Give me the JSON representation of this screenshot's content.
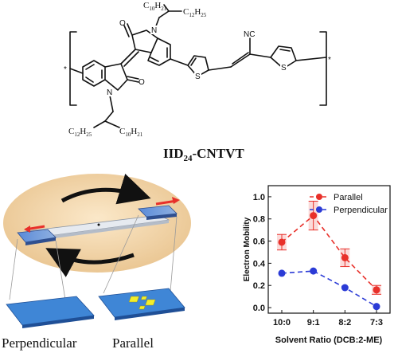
{
  "molecule": {
    "atom_O": "O",
    "atom_N": "N",
    "atom_S": "S",
    "atom_NC": "NC",
    "sub_top_a": "C",
    "sub_top_a_n": "10",
    "sub_top_a_h": "H",
    "sub_top_a_hn": "21",
    "sub_top_b": "C",
    "sub_top_b_n": "12",
    "sub_top_b_h": "H",
    "sub_top_b_hn": "25",
    "sub_bot_a": "C",
    "sub_bot_a_n": "12",
    "sub_bot_a_h": "H",
    "sub_bot_a_hn": "25",
    "sub_bot_b": "C",
    "sub_bot_b_n": "10",
    "sub_bot_b_h": "H",
    "sub_bot_b_hn": "21",
    "name_prefix": "IID",
    "name_sub": "24",
    "name_suffix": "-CNTVT",
    "star": "*"
  },
  "device": {
    "label_perpendicular": "Perpendicular",
    "label_parallel": "Parallel",
    "colors": {
      "disk": "#f2d7ad",
      "chip": "#4b79c8",
      "substrate": "#3f86d6",
      "electrode": "#f3ee2a",
      "arrow_red": "#e8302a"
    }
  },
  "chart_data": {
    "type": "line",
    "categories": [
      "10:0",
      "9:1",
      "8:2",
      "7:3"
    ],
    "xlabel": "Solvent Ratio (DCB:2-ME)",
    "ylabel": "Electron Mobility",
    "ylim": [
      -0.05,
      1.1
    ],
    "yticks": [
      "0.0",
      "0.2",
      "0.4",
      "0.6",
      "0.8",
      "1.0"
    ],
    "legend_position": "top-right",
    "series": [
      {
        "name": "Parallel",
        "color": "#e8302a",
        "values": [
          0.59,
          0.83,
          0.45,
          0.16
        ],
        "errors": [
          0.07,
          0.13,
          0.08,
          0.04
        ]
      },
      {
        "name": "Perpendicular",
        "color": "#2b3bd6",
        "values": [
          0.31,
          0.33,
          0.18,
          0.01
        ],
        "errors": [
          0,
          0,
          0,
          0
        ]
      }
    ]
  }
}
